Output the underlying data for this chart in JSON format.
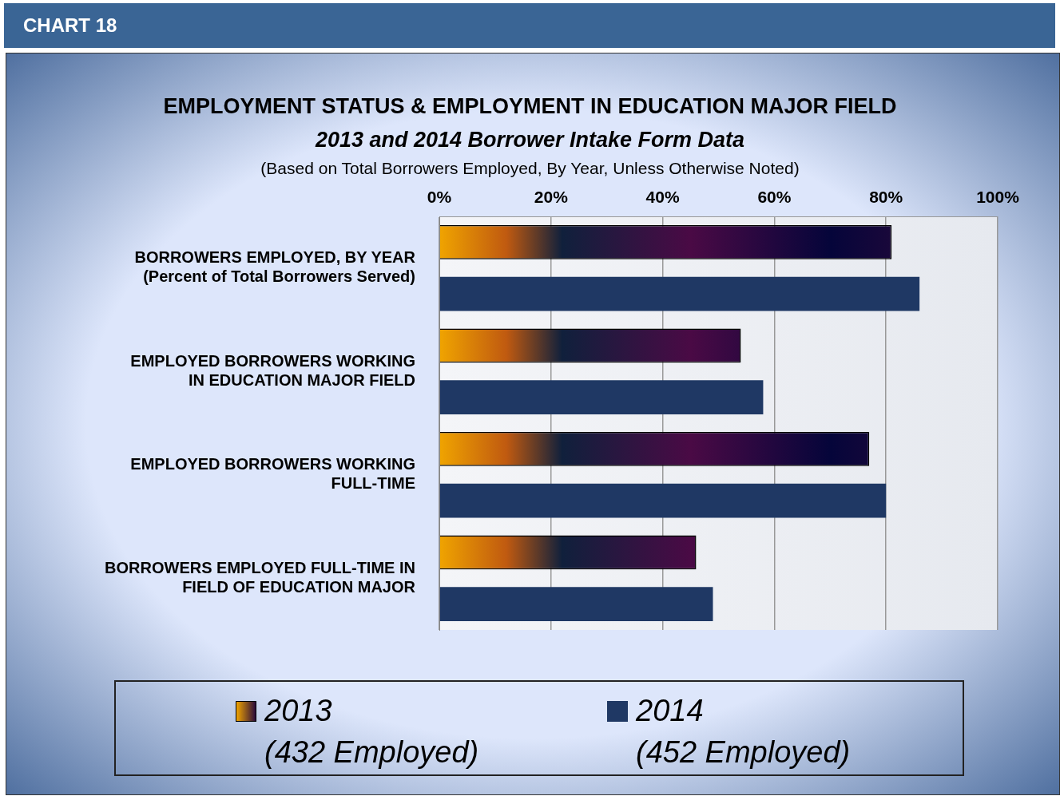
{
  "chart_data": {
    "type": "bar",
    "orientation": "horizontal",
    "title": "EMPLOYMENT STATUS & EMPLOYMENT IN EDUCATION MAJOR FIELD",
    "subtitle": "2013 and 2014 Borrower Intake Form Data",
    "annotations": [
      "CHART 18",
      "(Based on Total Borrowers Employed, By Year, Unless Otherwise Noted)"
    ],
    "categories": [
      "BORROWERS EMPLOYED, BY YEAR\n(Percent of Total Borrowers Served)",
      "EMPLOYED BORROWERS WORKING\nIN EDUCATION MAJOR FIELD",
      "EMPLOYED BORROWERS WORKING\nFULL-TIME",
      "BORROWERS EMPLOYED FULL-TIME IN\nFIELD OF EDUCATION MAJOR"
    ],
    "series": [
      {
        "name": "2013\n(432 Employed)",
        "color": "#2a0a3a",
        "values": [
          81,
          54,
          77,
          46
        ]
      },
      {
        "name": "2014\n(452 Employed)",
        "color": "#1f3864",
        "values": [
          86,
          58,
          80,
          49
        ]
      }
    ],
    "xlim": [
      0,
      100
    ],
    "xticks": [
      {
        "value": 0,
        "label": "0%"
      },
      {
        "value": 20,
        "label": "20%"
      },
      {
        "value": 40,
        "label": "40%"
      },
      {
        "value": 60,
        "label": "60%"
      },
      {
        "value": 80,
        "label": "80%"
      },
      {
        "value": 100,
        "label": "100%"
      }
    ],
    "grid": "x",
    "legend": "bottom"
  }
}
